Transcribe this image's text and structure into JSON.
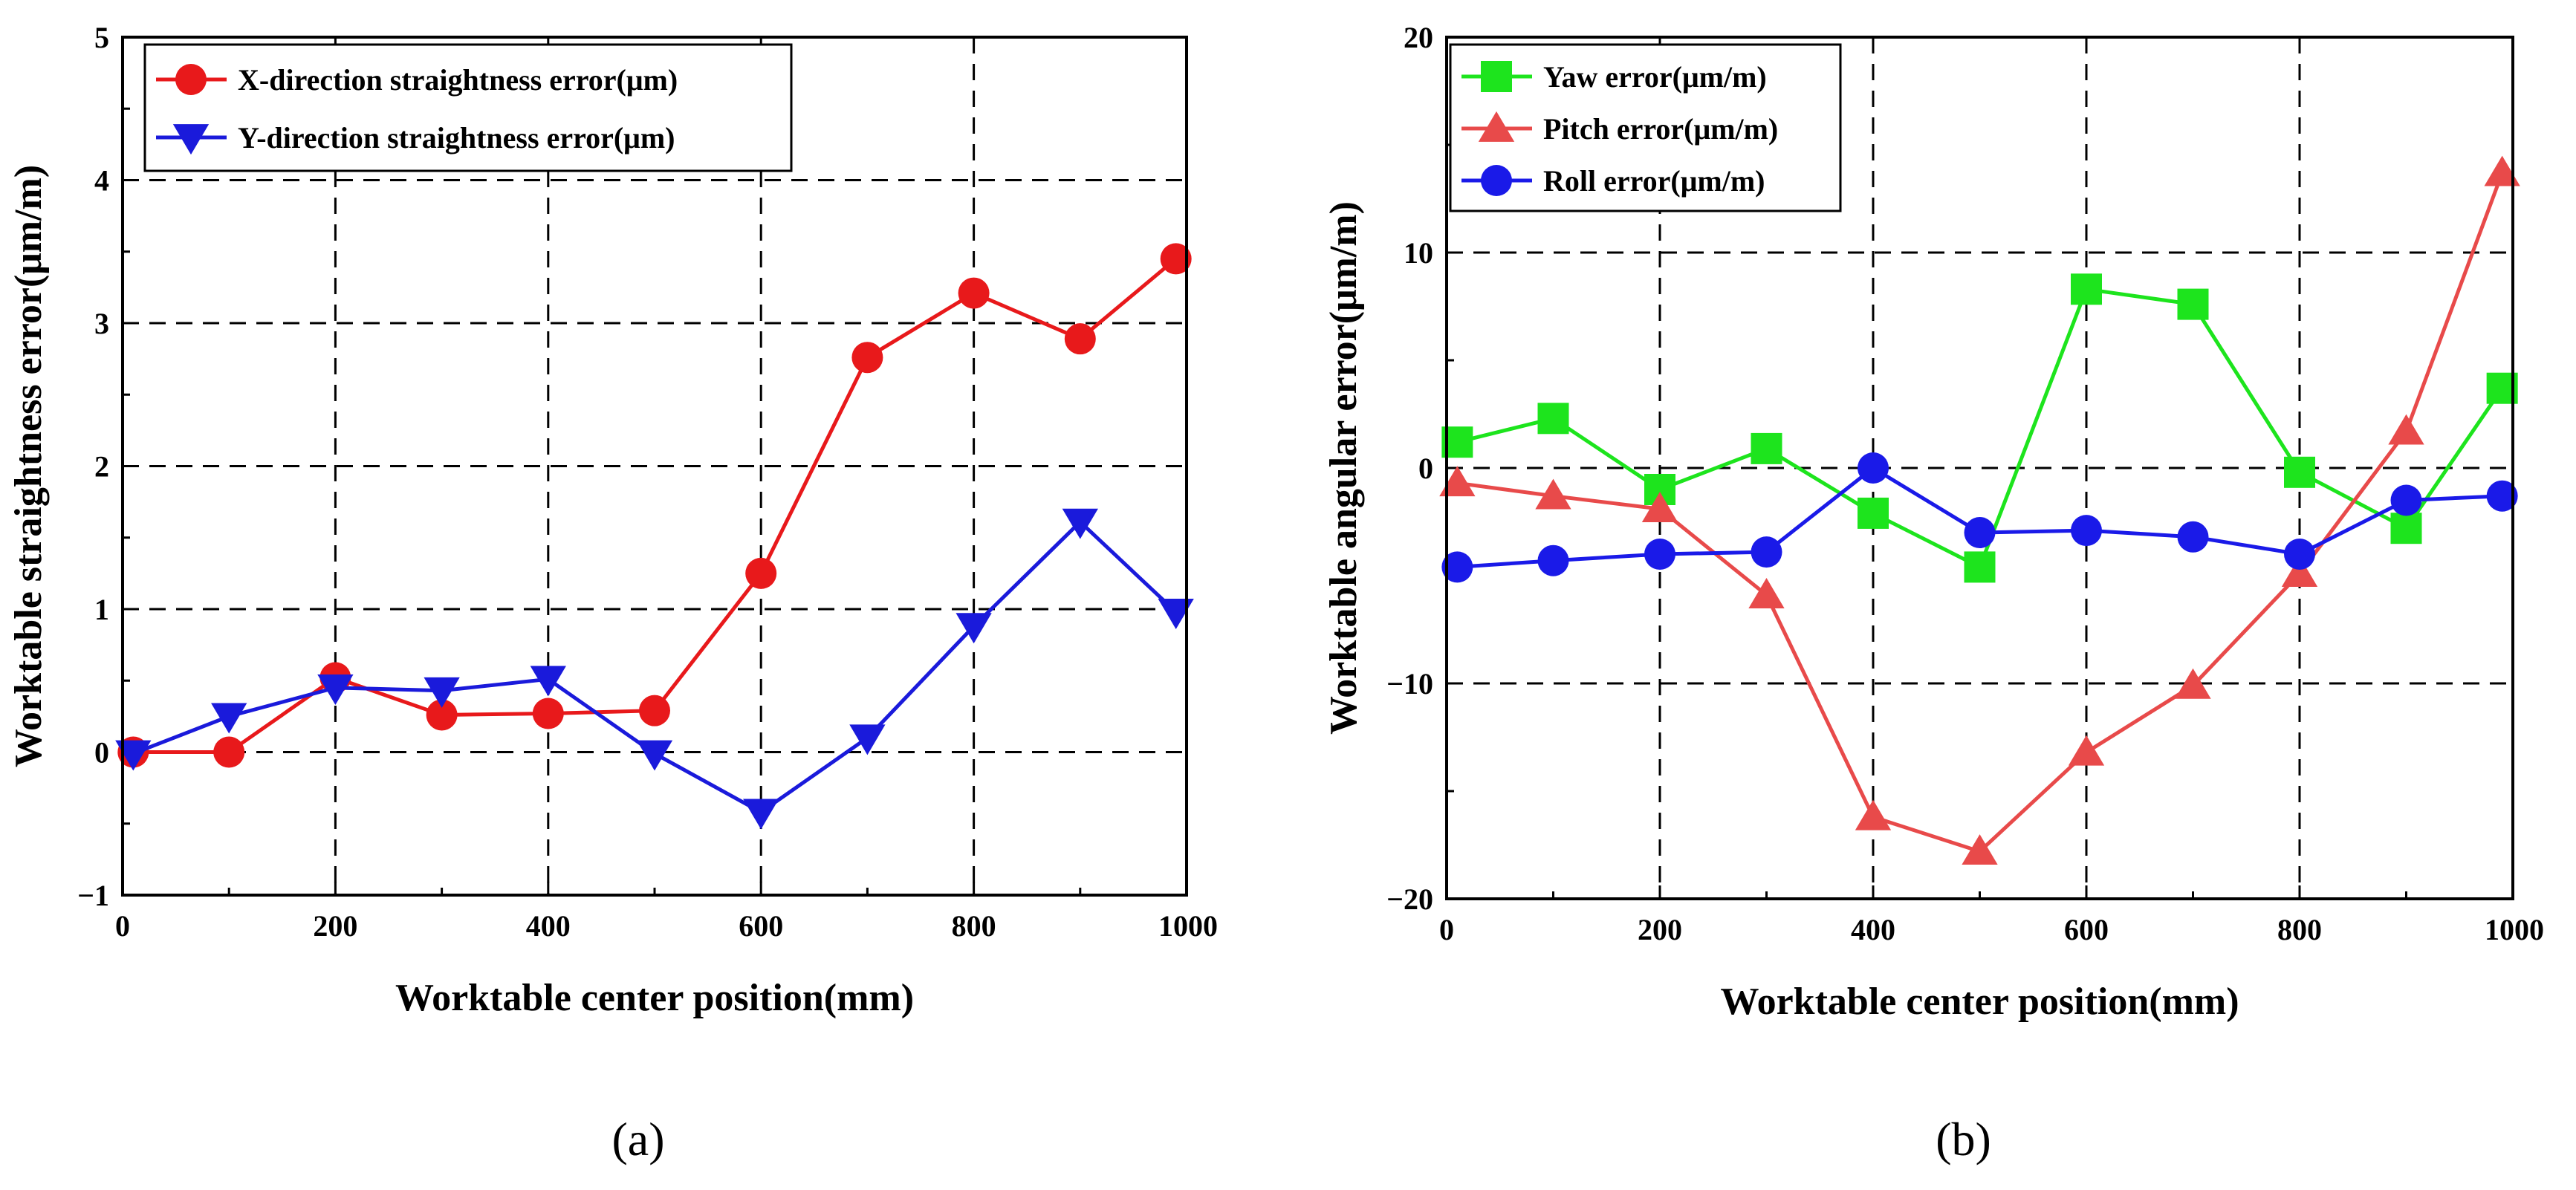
{
  "chart_data": [
    {
      "type": "line",
      "panel_label": "(a)",
      "xlabel": "Worktable center position(mm)",
      "ylabel": "Worktable straightness error(μm/m)",
      "xlim": [
        0,
        1000
      ],
      "ylim": [
        -1,
        5
      ],
      "xticks": [
        0,
        200,
        400,
        600,
        800,
        1000
      ],
      "yticks": [
        -1,
        0,
        1,
        2,
        3,
        4,
        5
      ],
      "grid": "dashed",
      "legend": "top-left",
      "x": [
        10,
        100,
        200,
        300,
        400,
        500,
        600,
        700,
        800,
        900,
        990
      ],
      "series": [
        {
          "name": "X-direction straightness error(μm)",
          "color": "#e8191b",
          "marker": "circle",
          "values": [
            0,
            0,
            0.52,
            0.26,
            0.27,
            0.29,
            1.25,
            2.76,
            3.21,
            2.89,
            3.45
          ]
        },
        {
          "name": "Y-direction straightness error(μm)",
          "color": "#1a1adb",
          "marker": "triangle-down",
          "values": [
            -0.01,
            0.25,
            0.45,
            0.43,
            0.51,
            -0.01,
            -0.42,
            0.1,
            0.88,
            1.61,
            0.98
          ]
        }
      ]
    },
    {
      "type": "line",
      "panel_label": "(b)",
      "xlabel": "Worktable center position(mm)",
      "ylabel": "Worktable angular error(μm/m)",
      "xlim": [
        0,
        1000
      ],
      "ylim": [
        -20,
        20
      ],
      "xticks": [
        0,
        200,
        400,
        600,
        800,
        1000
      ],
      "yticks": [
        -20,
        -10,
        0,
        10,
        20
      ],
      "grid": "dashed",
      "legend": "top-left",
      "x": [
        10,
        100,
        200,
        300,
        400,
        500,
        600,
        700,
        800,
        900,
        990
      ],
      "series": [
        {
          "name": "Yaw error(μm/m)",
          "color": "#1de41d",
          "marker": "square",
          "values": [
            1.2,
            2.3,
            -1.0,
            0.9,
            -2.1,
            -4.6,
            8.3,
            7.6,
            -0.2,
            -2.8,
            3.7
          ]
        },
        {
          "name": "Pitch error(μm/m)",
          "color": "#e84a4a",
          "marker": "triangle-up",
          "values": [
            -0.7,
            -1.3,
            -1.9,
            -5.9,
            -16.2,
            -17.8,
            -13.2,
            -10.1,
            -4.9,
            1.7,
            13.7
          ]
        },
        {
          "name": "Roll error(μm/m)",
          "color": "#1a1ae8",
          "marker": "circle",
          "values": [
            -4.6,
            -4.3,
            -4.0,
            -3.9,
            0.0,
            -3.0,
            -2.9,
            -3.2,
            -4.0,
            -1.5,
            -1.3
          ]
        }
      ]
    }
  ]
}
